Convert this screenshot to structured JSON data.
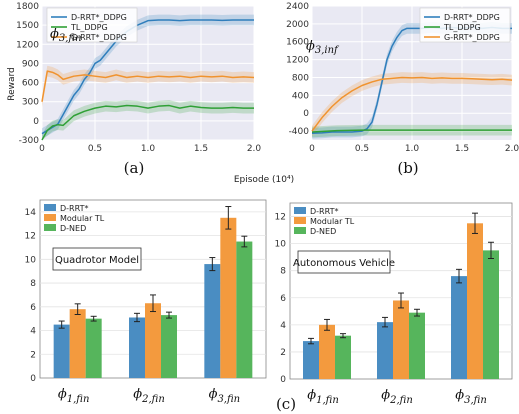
{
  "colors": {
    "blue": "#2f7ebc",
    "orange": "#f0932f",
    "green": "#2fa036",
    "panel_bg": "#e9e9f3",
    "bar_blue": "#4a8dc2",
    "bar_orange": "#f39a3e",
    "bar_green": "#56b55c"
  },
  "chart_data": [
    {
      "type": "line",
      "panel_label": "(a)",
      "annotation": "φ3,fin",
      "annotation_main": "ϕ",
      "annotation_sub": "3,fin",
      "ylabel": "Reward",
      "xlabel": "",
      "xlim": [
        0,
        2.0
      ],
      "ylim": [
        -300,
        1800
      ],
      "xticks": [
        "0",
        "0.5",
        "1.0",
        "1.5",
        "2.0"
      ],
      "xtick_values": [
        0,
        0.5,
        1.0,
        1.5,
        2.0
      ],
      "yticks": [
        "-300",
        "0",
        "300",
        "600",
        "900",
        "1200",
        "1500",
        "1800"
      ],
      "ytick_values": [
        -300,
        0,
        300,
        600,
        900,
        1200,
        1500,
        1800
      ],
      "legend": "top-left",
      "series": [
        {
          "name": "D-RRT*_DDPG",
          "color": "blue",
          "x": [
            0,
            0.05,
            0.1,
            0.15,
            0.2,
            0.25,
            0.3,
            0.35,
            0.4,
            0.45,
            0.5,
            0.55,
            0.6,
            0.65,
            0.7,
            0.8,
            0.9,
            1.0,
            1.1,
            1.2,
            1.3,
            1.4,
            1.5,
            1.6,
            1.7,
            1.8,
            1.9,
            2.0
          ],
          "y": [
            -200,
            -150,
            -100,
            -50,
            100,
            250,
            400,
            500,
            650,
            750,
            900,
            950,
            1050,
            1150,
            1250,
            1400,
            1500,
            1570,
            1580,
            1580,
            1570,
            1580,
            1580,
            1580,
            1575,
            1580,
            1580,
            1580
          ]
        },
        {
          "name": "TL_DDPG",
          "color": "green",
          "x": [
            0,
            0.05,
            0.1,
            0.15,
            0.2,
            0.3,
            0.4,
            0.5,
            0.6,
            0.7,
            0.8,
            0.9,
            1.0,
            1.1,
            1.2,
            1.3,
            1.4,
            1.5,
            1.6,
            1.7,
            1.8,
            1.9,
            2.0
          ],
          "y": [
            -300,
            -150,
            -80,
            -60,
            -70,
            80,
            150,
            200,
            230,
            220,
            240,
            230,
            200,
            230,
            240,
            200,
            230,
            210,
            200,
            200,
            210,
            200,
            200
          ]
        },
        {
          "name": "G-RRT*_DDPG",
          "color": "orange",
          "x": [
            0,
            0.05,
            0.1,
            0.15,
            0.2,
            0.3,
            0.4,
            0.5,
            0.6,
            0.7,
            0.8,
            0.9,
            1.0,
            1.1,
            1.2,
            1.3,
            1.4,
            1.5,
            1.6,
            1.7,
            1.8,
            1.9,
            2.0
          ],
          "y": [
            300,
            780,
            760,
            720,
            650,
            700,
            720,
            700,
            680,
            720,
            680,
            700,
            680,
            700,
            690,
            700,
            680,
            700,
            690,
            700,
            680,
            690,
            680
          ]
        }
      ]
    },
    {
      "type": "line",
      "panel_label": "(b)",
      "annotation": "φ3,inf",
      "annotation_main": "ϕ",
      "annotation_sub": "3,inf",
      "ylabel": "",
      "xlabel": "Episode (10⁴)",
      "xlim": [
        0,
        2.0
      ],
      "ylim": [
        -600,
        2400
      ],
      "xticks": [
        "0",
        "0.5",
        "1.0",
        "1.5",
        "2.0"
      ],
      "xtick_values": [
        0,
        0.5,
        1.0,
        1.5,
        2.0
      ],
      "yticks": [
        "-400",
        "0",
        "400",
        "800",
        "1200",
        "1600",
        "2000",
        "2400"
      ],
      "ytick_values": [
        -400,
        0,
        400,
        800,
        1200,
        1600,
        2000,
        2400
      ],
      "legend": "top-right",
      "series": [
        {
          "name": "D-RRT*_DDPG",
          "color": "blue",
          "x": [
            0,
            0.1,
            0.2,
            0.3,
            0.4,
            0.5,
            0.55,
            0.6,
            0.65,
            0.7,
            0.75,
            0.8,
            0.85,
            0.9,
            0.95,
            1.0,
            1.1,
            1.2,
            1.3,
            1.4,
            1.5,
            1.6,
            1.7,
            1.8,
            1.9,
            2.0
          ],
          "y": [
            -450,
            -440,
            -420,
            -420,
            -420,
            -400,
            -350,
            -200,
            200,
            700,
            1200,
            1500,
            1700,
            1850,
            1900,
            1900,
            1900,
            1920,
            1900,
            1920,
            1900,
            1930,
            1900,
            1920,
            1900,
            1900
          ]
        },
        {
          "name": "TL_DDPG",
          "color": "green",
          "x": [
            0,
            0.25,
            0.5,
            0.75,
            1.0,
            1.25,
            1.5,
            1.75,
            2.0
          ],
          "y": [
            -420,
            -390,
            -380,
            -380,
            -380,
            -380,
            -380,
            -380,
            -380
          ]
        },
        {
          "name": "G-RRT*_DDPG",
          "color": "orange",
          "x": [
            0,
            0.1,
            0.2,
            0.3,
            0.4,
            0.5,
            0.6,
            0.7,
            0.8,
            0.9,
            1.0,
            1.1,
            1.2,
            1.3,
            1.4,
            1.5,
            1.6,
            1.7,
            1.8,
            1.9,
            2.0
          ],
          "y": [
            -400,
            -100,
            150,
            350,
            500,
            620,
            700,
            760,
            780,
            800,
            790,
            800,
            780,
            790,
            780,
            780,
            770,
            760,
            750,
            760,
            740
          ]
        }
      ]
    },
    {
      "type": "bar",
      "panel_label": "(c)",
      "annotation": "Quadrotor Model",
      "ylim": [
        0,
        15
      ],
      "yticks": [
        "0",
        "2",
        "4",
        "6",
        "8",
        "10",
        "12",
        "14"
      ],
      "ytick_values": [
        0,
        2,
        4,
        6,
        8,
        10,
        12,
        14
      ],
      "legend": "top-left",
      "categories": [
        "ϕ1,fin",
        "ϕ2,fin",
        "ϕ3,fin"
      ],
      "category_main": [
        "ϕ",
        "ϕ",
        "ϕ"
      ],
      "category_sub": [
        "1,fin",
        "2,fin",
        "3,fin"
      ],
      "series": [
        {
          "name": "D-RRT*",
          "color": "bar_blue",
          "values": [
            4.5,
            5.1,
            9.6
          ],
          "err": [
            0.3,
            0.35,
            0.55
          ]
        },
        {
          "name": "Modular TL",
          "color": "bar_orange",
          "values": [
            5.8,
            6.3,
            13.5
          ],
          "err": [
            0.45,
            0.7,
            0.95
          ]
        },
        {
          "name": "D-NED",
          "color": "bar_green",
          "values": [
            5.0,
            5.3,
            11.5
          ],
          "err": [
            0.2,
            0.25,
            0.45
          ]
        }
      ]
    },
    {
      "type": "bar",
      "panel_label": "",
      "annotation": "Autonomous Vehicle",
      "ylim": [
        0,
        13
      ],
      "yticks": [
        "0",
        "2",
        "4",
        "6",
        "8",
        "10",
        "12"
      ],
      "ytick_values": [
        0,
        2,
        4,
        6,
        8,
        10,
        12
      ],
      "legend": "top-left",
      "categories": [
        "ϕ1,fin",
        "ϕ2,fin",
        "ϕ3,fin"
      ],
      "category_main": [
        "ϕ",
        "ϕ",
        "ϕ"
      ],
      "category_sub": [
        "1,fin",
        "2,fin",
        "3,fin"
      ],
      "series": [
        {
          "name": "D-RRT*",
          "color": "bar_blue",
          "values": [
            2.8,
            4.2,
            7.6
          ],
          "err": [
            0.2,
            0.35,
            0.5
          ]
        },
        {
          "name": "Modular TL",
          "color": "bar_orange",
          "values": [
            4.0,
            5.8,
            11.5
          ],
          "err": [
            0.4,
            0.55,
            0.75
          ]
        },
        {
          "name": "D-NED",
          "color": "bar_green",
          "values": [
            3.2,
            4.9,
            9.5
          ],
          "err": [
            0.15,
            0.25,
            0.6
          ]
        }
      ]
    }
  ]
}
